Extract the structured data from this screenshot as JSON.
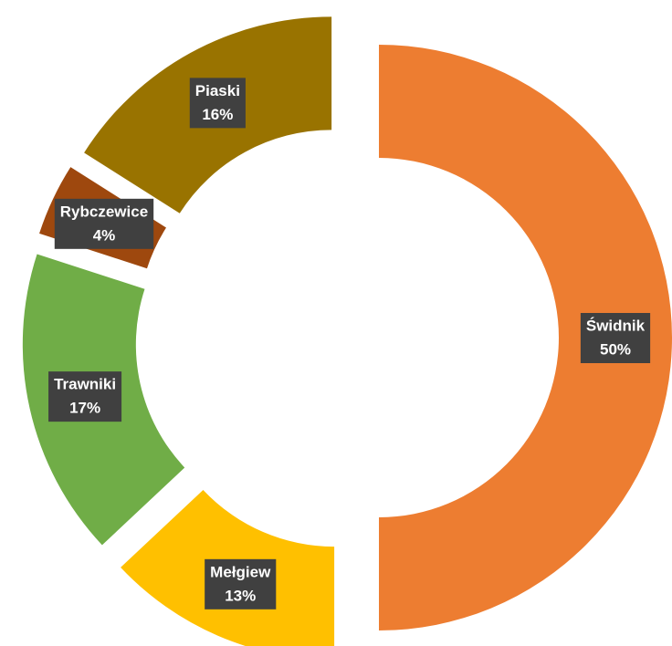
{
  "chart_data": {
    "type": "donut",
    "categories": [
      "Świdnik",
      "Mełgiew",
      "Trawniki",
      "Rybczewice",
      "Piaski"
    ],
    "values": [
      50,
      13,
      17,
      4,
      16
    ],
    "value_labels": [
      "50%",
      "13%",
      "17%",
      "4%",
      "16%"
    ],
    "colors": [
      "#ED7D31",
      "#FFC000",
      "#70AD47",
      "#9E480E",
      "#997300"
    ]
  }
}
